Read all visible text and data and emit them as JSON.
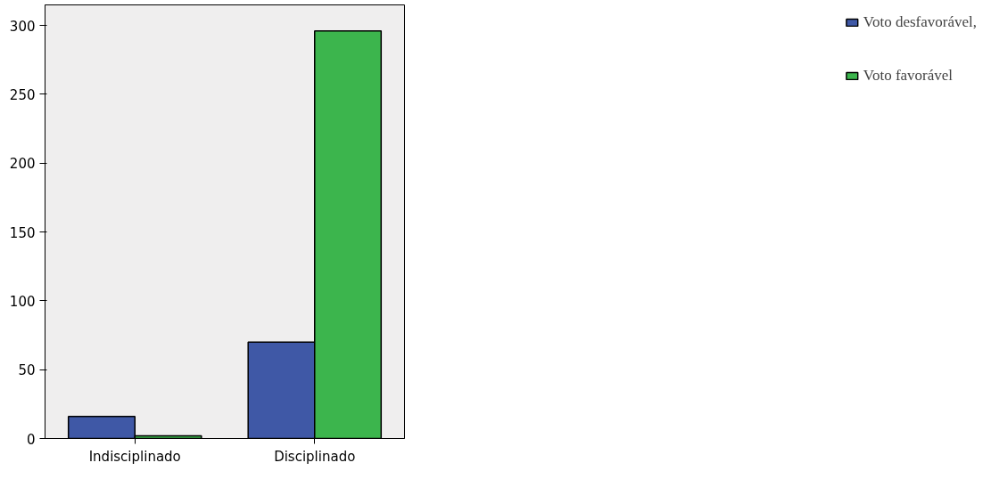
{
  "chart_data": {
    "type": "bar",
    "categories": [
      "Indisciplinado",
      "Disciplinado"
    ],
    "series": [
      {
        "name": "Voto desfavorável,",
        "color": "#3f58a6",
        "values": [
          16,
          70
        ]
      },
      {
        "name": "Voto favorável",
        "color": "#3cb54d",
        "values": [
          2,
          296
        ]
      }
    ],
    "ylim": [
      0,
      315
    ],
    "yticks": [
      0,
      50,
      100,
      150,
      200,
      250,
      300
    ],
    "grid": false,
    "legend": "top right"
  }
}
